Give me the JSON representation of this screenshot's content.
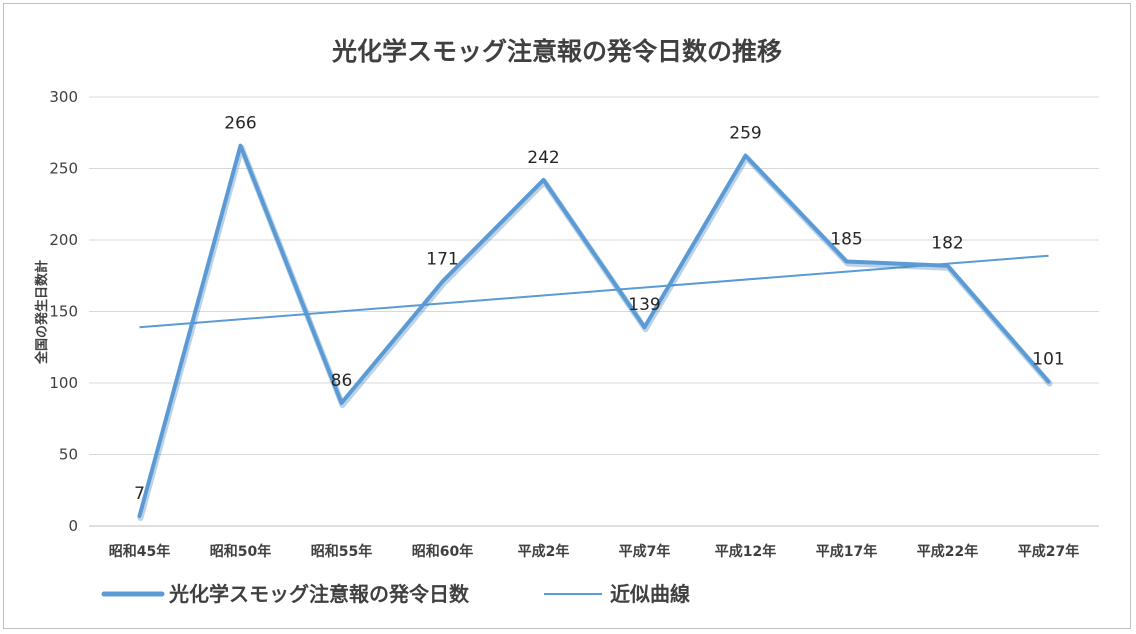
{
  "chart_data": {
    "type": "line",
    "title": "光化学スモッグ注意報の発令日数の推移",
    "ylabel": "全国の発生日数計",
    "xlabel": "",
    "categories": [
      "昭和45年",
      "昭和50年",
      "昭和55年",
      "昭和60年",
      "平成2年",
      "平成7年",
      "平成12年",
      "平成17年",
      "平成22年",
      "平成27年"
    ],
    "series": [
      {
        "name": "光化学スモッグ注意報の発令日数",
        "values": [
          7,
          266,
          86,
          171,
          242,
          139,
          259,
          185,
          182,
          101
        ],
        "data_labels": [
          "7",
          "266",
          "86",
          "171",
          "242",
          "139",
          "259",
          "185",
          "182",
          "101"
        ],
        "color": "#5b9bd5"
      },
      {
        "name": "近似曲線",
        "trendline": "linear",
        "start_value": 139,
        "end_value": 189,
        "color": "#5b9bd5"
      }
    ],
    "ylim": [
      0,
      300
    ],
    "yticks": [
      0,
      50,
      100,
      150,
      200,
      250,
      300
    ],
    "ytick_labels": [
      "0",
      "50",
      "100",
      "150",
      "200",
      "250",
      "300"
    ],
    "grid": true,
    "legend": "bottom-left"
  }
}
